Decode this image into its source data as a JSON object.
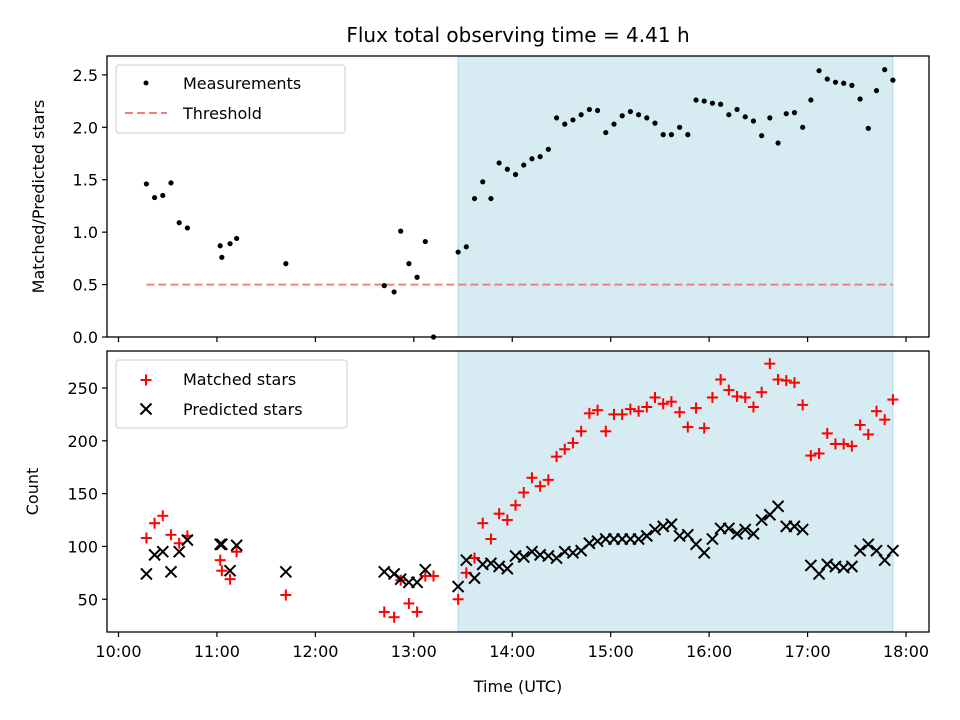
{
  "figure": {
    "title": "Flux total observing time = 4.41 h",
    "xlabel": "Time (UTC)"
  },
  "chart_data": [
    {
      "type": "scatter",
      "ylabel": "Matched/Predicted stars",
      "xlim": [
        "09:53",
        "18:14"
      ],
      "ylim": [
        0,
        2.68
      ],
      "yticks": [
        "0.0",
        "0.5",
        "1.0",
        "1.5",
        "2.0",
        "2.5"
      ],
      "ytick_values": [
        0,
        0.5,
        1.0,
        1.5,
        2.0,
        2.5
      ],
      "legend_position": "top-left",
      "shaded_span": {
        "from": "13:27",
        "to": "17:52",
        "color": "#add8e6"
      },
      "threshold": {
        "name": "Threshold",
        "value": 0.5,
        "from": "10:17",
        "to": "17:52",
        "color": "#f08080"
      },
      "series": [
        {
          "name": "Measurements",
          "color": "#000000",
          "marker": "dot",
          "points": [
            [
              "10:17",
              1.46
            ],
            [
              "10:22",
              1.33
            ],
            [
              "10:27",
              1.35
            ],
            [
              "10:32",
              1.47
            ],
            [
              "10:37",
              1.09
            ],
            [
              "10:42",
              1.04
            ],
            [
              "11:02",
              0.87
            ],
            [
              "11:03",
              0.76
            ],
            [
              "11:08",
              0.89
            ],
            [
              "11:12",
              0.94
            ],
            [
              "11:42",
              0.7
            ],
            [
              "12:42",
              0.49
            ],
            [
              "12:48",
              0.43
            ],
            [
              "12:52",
              1.01
            ],
            [
              "12:57",
              0.7
            ],
            [
              "13:02",
              0.57
            ],
            [
              "13:07",
              0.91
            ],
            [
              "13:12",
              0.0
            ],
            [
              "13:27",
              0.81
            ],
            [
              "13:32",
              0.86
            ],
            [
              "13:37",
              1.32
            ],
            [
              "13:42",
              1.48
            ],
            [
              "13:47",
              1.32
            ],
            [
              "13:52",
              1.66
            ],
            [
              "13:57",
              1.6
            ],
            [
              "14:02",
              1.55
            ],
            [
              "14:07",
              1.64
            ],
            [
              "14:12",
              1.7
            ],
            [
              "14:17",
              1.72
            ],
            [
              "14:22",
              1.79
            ],
            [
              "14:27",
              2.09
            ],
            [
              "14:32",
              2.03
            ],
            [
              "14:37",
              2.07
            ],
            [
              "14:42",
              2.12
            ],
            [
              "14:47",
              2.17
            ],
            [
              "14:52",
              2.16
            ],
            [
              "14:57",
              1.95
            ],
            [
              "15:02",
              2.03
            ],
            [
              "15:07",
              2.11
            ],
            [
              "15:12",
              2.15
            ],
            [
              "15:17",
              2.12
            ],
            [
              "15:22",
              2.09
            ],
            [
              "15:27",
              2.04
            ],
            [
              "15:32",
              1.93
            ],
            [
              "15:37",
              1.93
            ],
            [
              "15:42",
              2.0
            ],
            [
              "15:47",
              1.93
            ],
            [
              "15:52",
              2.26
            ],
            [
              "15:57",
              2.25
            ],
            [
              "16:02",
              2.23
            ],
            [
              "16:07",
              2.22
            ],
            [
              "16:12",
              2.12
            ],
            [
              "16:17",
              2.17
            ],
            [
              "16:22",
              2.1
            ],
            [
              "16:27",
              2.06
            ],
            [
              "16:32",
              1.92
            ],
            [
              "16:37",
              2.09
            ],
            [
              "16:42",
              1.85
            ],
            [
              "16:47",
              2.13
            ],
            [
              "16:52",
              2.14
            ],
            [
              "16:57",
              2.0
            ],
            [
              "17:02",
              2.26
            ],
            [
              "17:07",
              2.54
            ],
            [
              "17:12",
              2.46
            ],
            [
              "17:17",
              2.43
            ],
            [
              "17:22",
              2.42
            ],
            [
              "17:27",
              2.4
            ],
            [
              "17:32",
              2.27
            ],
            [
              "17:37",
              1.99
            ],
            [
              "17:42",
              2.35
            ],
            [
              "17:47",
              2.55
            ],
            [
              "17:52",
              2.45
            ]
          ]
        }
      ]
    },
    {
      "type": "scatter",
      "ylabel": "Count",
      "xlim": [
        "09:53",
        "18:14"
      ],
      "ylim": [
        19,
        285
      ],
      "yticks": [
        "50",
        "100",
        "150",
        "200",
        "250"
      ],
      "ytick_values": [
        50,
        100,
        150,
        200,
        250
      ],
      "xticks": [
        "10:00",
        "11:00",
        "12:00",
        "13:00",
        "14:00",
        "15:00",
        "16:00",
        "17:00",
        "18:00"
      ],
      "legend_position": "top-left",
      "shaded_span": {
        "from": "13:27",
        "to": "17:52",
        "color": "#add8e6"
      },
      "series": [
        {
          "name": "Matched stars",
          "color": "#ff0000",
          "marker": "plus",
          "points": [
            [
              "10:17",
              108
            ],
            [
              "10:22",
              122
            ],
            [
              "10:27",
              129
            ],
            [
              "10:32",
              111
            ],
            [
              "10:37",
              103
            ],
            [
              "10:42",
              110
            ],
            [
              "11:02",
              87
            ],
            [
              "11:03",
              77
            ],
            [
              "11:08",
              69
            ],
            [
              "11:12",
              95
            ],
            [
              "11:42",
              54
            ],
            [
              "12:42",
              38
            ],
            [
              "12:48",
              33
            ],
            [
              "12:52",
              68
            ],
            [
              "12:57",
              46
            ],
            [
              "13:02",
              38
            ],
            [
              "13:07",
              72
            ],
            [
              "13:12",
              72
            ],
            [
              "13:27",
              50
            ],
            [
              "13:32",
              75
            ],
            [
              "13:37",
              89
            ],
            [
              "13:42",
              122
            ],
            [
              "13:47",
              107
            ],
            [
              "13:52",
              131
            ],
            [
              "13:57",
              125
            ],
            [
              "14:02",
              139
            ],
            [
              "14:07",
              151
            ],
            [
              "14:12",
              165
            ],
            [
              "14:17",
              157
            ],
            [
              "14:22",
              163
            ],
            [
              "14:27",
              185
            ],
            [
              "14:32",
              192
            ],
            [
              "14:37",
              198
            ],
            [
              "14:42",
              209
            ],
            [
              "14:47",
              226
            ],
            [
              "14:52",
              229
            ],
            [
              "14:57",
              209
            ],
            [
              "15:02",
              225
            ],
            [
              "15:07",
              225
            ],
            [
              "15:12",
              230
            ],
            [
              "15:17",
              228
            ],
            [
              "15:22",
              232
            ],
            [
              "15:27",
              241
            ],
            [
              "15:32",
              235
            ],
            [
              "15:37",
              237
            ],
            [
              "15:42",
              227
            ],
            [
              "15:47",
              213
            ],
            [
              "15:52",
              231
            ],
            [
              "15:57",
              212
            ],
            [
              "16:02",
              241
            ],
            [
              "16:07",
              258
            ],
            [
              "16:12",
              248
            ],
            [
              "16:17",
              242
            ],
            [
              "16:22",
              241
            ],
            [
              "16:27",
              232
            ],
            [
              "16:32",
              246
            ],
            [
              "16:37",
              273
            ],
            [
              "16:42",
              258
            ],
            [
              "16:47",
              257
            ],
            [
              "16:52",
              255
            ],
            [
              "16:57",
              234
            ],
            [
              "17:02",
              186
            ],
            [
              "17:07",
              188
            ],
            [
              "17:12",
              207
            ],
            [
              "17:17",
              197
            ],
            [
              "17:22",
              197
            ],
            [
              "17:27",
              195
            ],
            [
              "17:32",
              215
            ],
            [
              "17:37",
              206
            ],
            [
              "17:42",
              228
            ],
            [
              "17:47",
              220
            ],
            [
              "17:52",
              239
            ]
          ]
        },
        {
          "name": "Predicted stars",
          "color": "#000000",
          "marker": "x",
          "points": [
            [
              "10:17",
              74
            ],
            [
              "10:22",
              92
            ],
            [
              "10:27",
              95
            ],
            [
              "10:32",
              76
            ],
            [
              "10:37",
              95
            ],
            [
              "10:42",
              106
            ],
            [
              "11:02",
              102
            ],
            [
              "11:03",
              102
            ],
            [
              "11:08",
              77
            ],
            [
              "11:12",
              101
            ],
            [
              "11:42",
              76
            ],
            [
              "12:42",
              76
            ],
            [
              "12:48",
              74
            ],
            [
              "12:52",
              69
            ],
            [
              "12:57",
              66
            ],
            [
              "13:02",
              66
            ],
            [
              "13:07",
              78
            ],
            [
              "13:27",
              62
            ],
            [
              "13:32",
              87
            ],
            [
              "13:37",
              70
            ],
            [
              "13:42",
              83
            ],
            [
              "13:47",
              84
            ],
            [
              "13:52",
              81
            ],
            [
              "13:57",
              79
            ],
            [
              "14:02",
              91
            ],
            [
              "14:07",
              90
            ],
            [
              "14:12",
              95
            ],
            [
              "14:17",
              92
            ],
            [
              "14:22",
              91
            ],
            [
              "14:27",
              89
            ],
            [
              "14:32",
              95
            ],
            [
              "14:37",
              94
            ],
            [
              "14:42",
              96
            ],
            [
              "14:47",
              103
            ],
            [
              "14:52",
              105
            ],
            [
              "14:57",
              107
            ],
            [
              "15:02",
              107
            ],
            [
              "15:07",
              107
            ],
            [
              "15:12",
              107
            ],
            [
              "15:17",
              107
            ],
            [
              "15:22",
              110
            ],
            [
              "15:27",
              116
            ],
            [
              "15:32",
              119
            ],
            [
              "15:37",
              121
            ],
            [
              "15:42",
              110
            ],
            [
              "15:47",
              111
            ],
            [
              "15:52",
              102
            ],
            [
              "15:57",
              94
            ],
            [
              "16:02",
              107
            ],
            [
              "16:07",
              117
            ],
            [
              "16:12",
              117
            ],
            [
              "16:17",
              112
            ],
            [
              "16:22",
              116
            ],
            [
              "16:27",
              112
            ],
            [
              "16:32",
              125
            ],
            [
              "16:37",
              130
            ],
            [
              "16:42",
              138
            ],
            [
              "16:47",
              119
            ],
            [
              "16:52",
              119
            ],
            [
              "16:57",
              116
            ],
            [
              "17:02",
              82
            ],
            [
              "17:07",
              74
            ],
            [
              "17:12",
              83
            ],
            [
              "17:17",
              81
            ],
            [
              "17:22",
              80
            ],
            [
              "17:27",
              81
            ],
            [
              "17:32",
              96
            ],
            [
              "17:37",
              102
            ],
            [
              "17:42",
              96
            ],
            [
              "17:47",
              87
            ],
            [
              "17:52",
              96
            ]
          ]
        }
      ]
    }
  ]
}
